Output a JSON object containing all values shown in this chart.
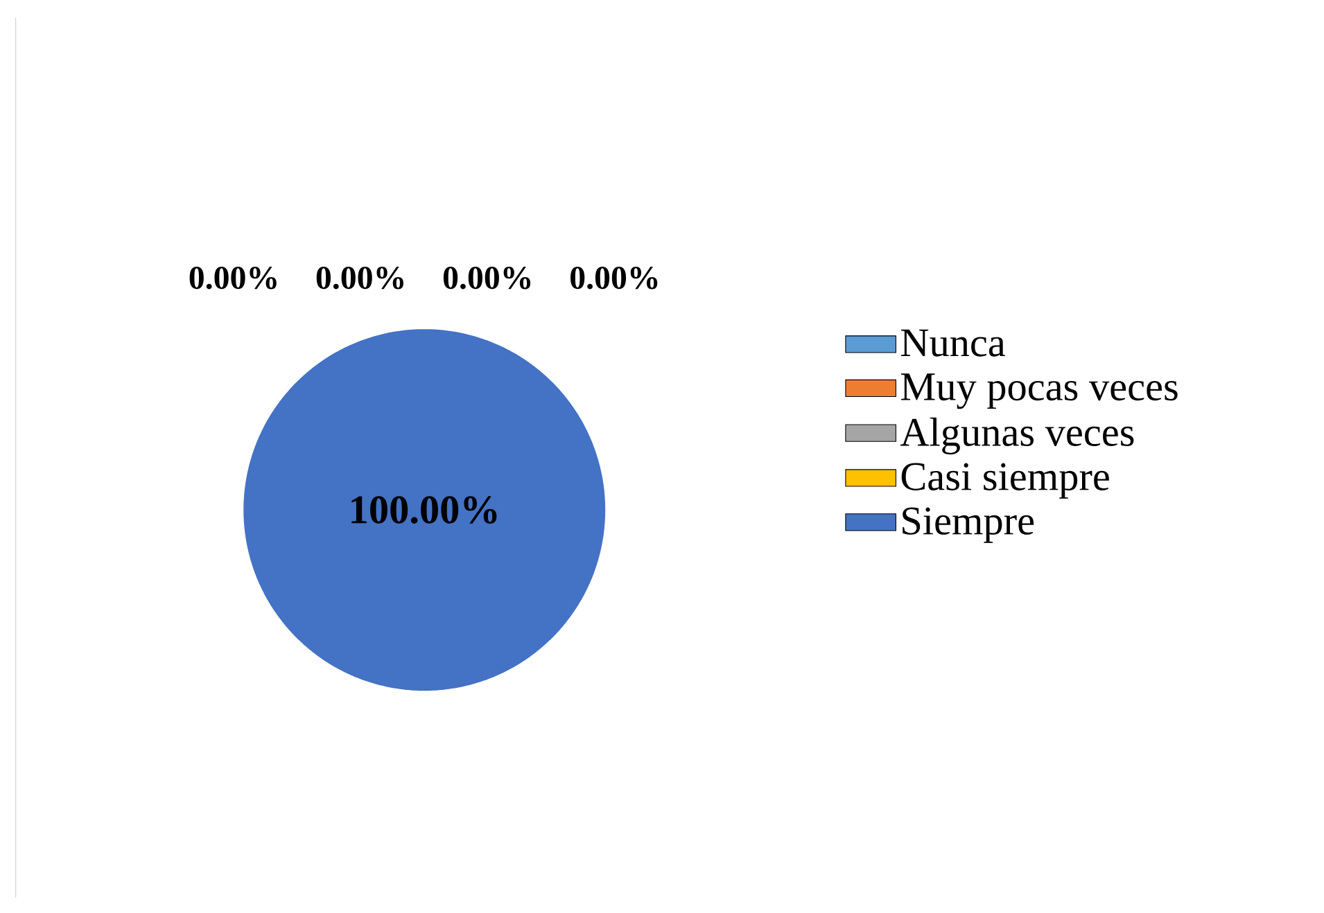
{
  "chart_data": {
    "type": "pie",
    "categories": [
      "Nunca",
      "Muy pocas veces",
      "Algunas veces",
      "Casi siempre",
      "Siempre"
    ],
    "values": [
      0,
      0,
      0,
      0,
      100
    ],
    "colors": [
      "#5b9bd5",
      "#ed7d31",
      "#a5a5a5",
      "#ffc000",
      "#4472c4"
    ],
    "value_labels": [
      "0.00%",
      "0.00%",
      "0.00%",
      "0.00%",
      "100.00%"
    ],
    "legend": "right"
  }
}
